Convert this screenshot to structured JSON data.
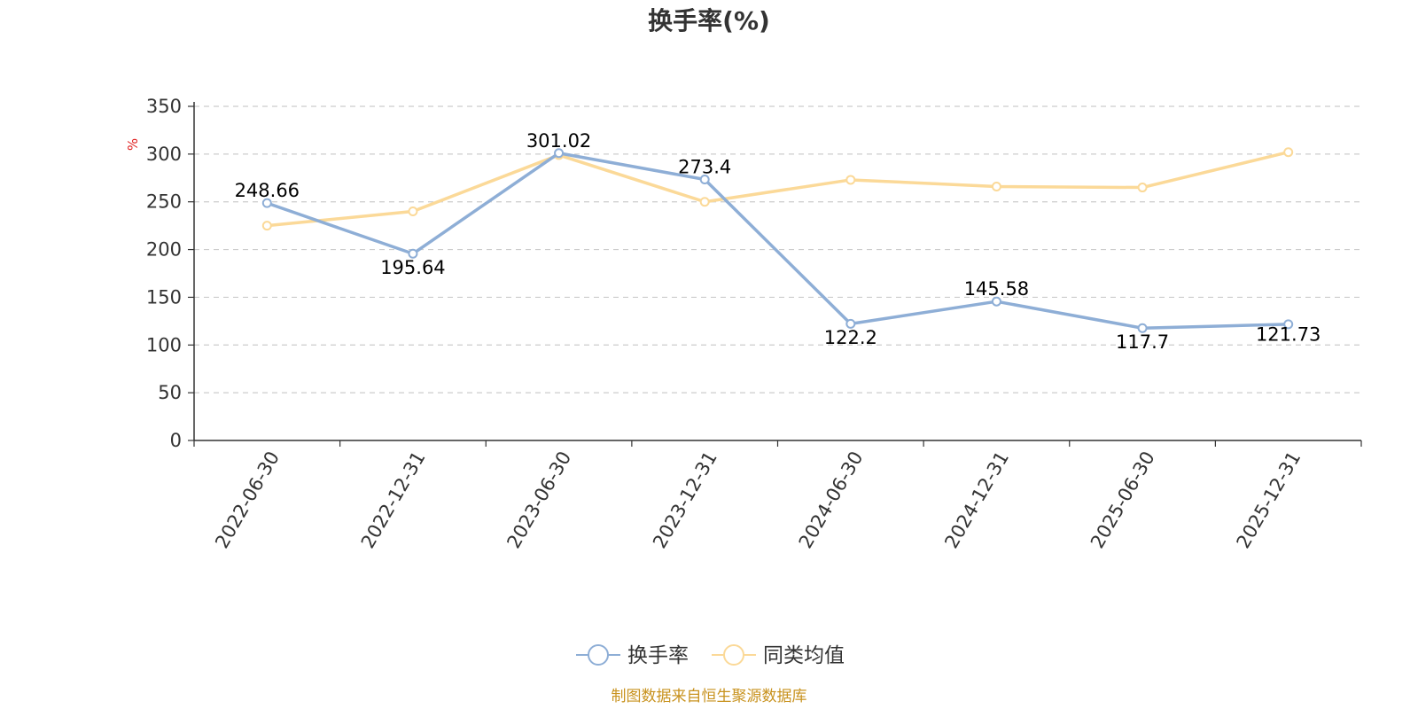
{
  "chart_data": {
    "type": "line",
    "title": "换手率(%)",
    "ylabel": "%",
    "xlabel": "",
    "categories": [
      "2022-06-30",
      "2022-12-31",
      "2023-06-30",
      "2023-12-31",
      "2024-06-30",
      "2024-12-31",
      "2025-06-30",
      "2025-12-31"
    ],
    "ylim": [
      0,
      350
    ],
    "yticks": [
      0,
      50,
      100,
      150,
      200,
      250,
      300,
      350
    ],
    "grid": true,
    "legend_position": "bottom-center",
    "series": [
      {
        "name": "换手率",
        "color": "#8eaed6",
        "values": [
          248.66,
          195.64,
          301.02,
          273.4,
          122.2,
          145.58,
          117.7,
          121.73
        ],
        "labels": [
          "248.66",
          "195.64",
          "301.02",
          "273.4",
          "122.2",
          "145.58",
          "117.7",
          "121.73"
        ]
      },
      {
        "name": "同类均值",
        "color": "#fbd998",
        "values": [
          225,
          240,
          299,
          250,
          273,
          266,
          265,
          302
        ]
      }
    ],
    "source": "制图数据来自恒生聚源数据库",
    "unit_color": "#e02020",
    "source_color": "#c8921e"
  }
}
